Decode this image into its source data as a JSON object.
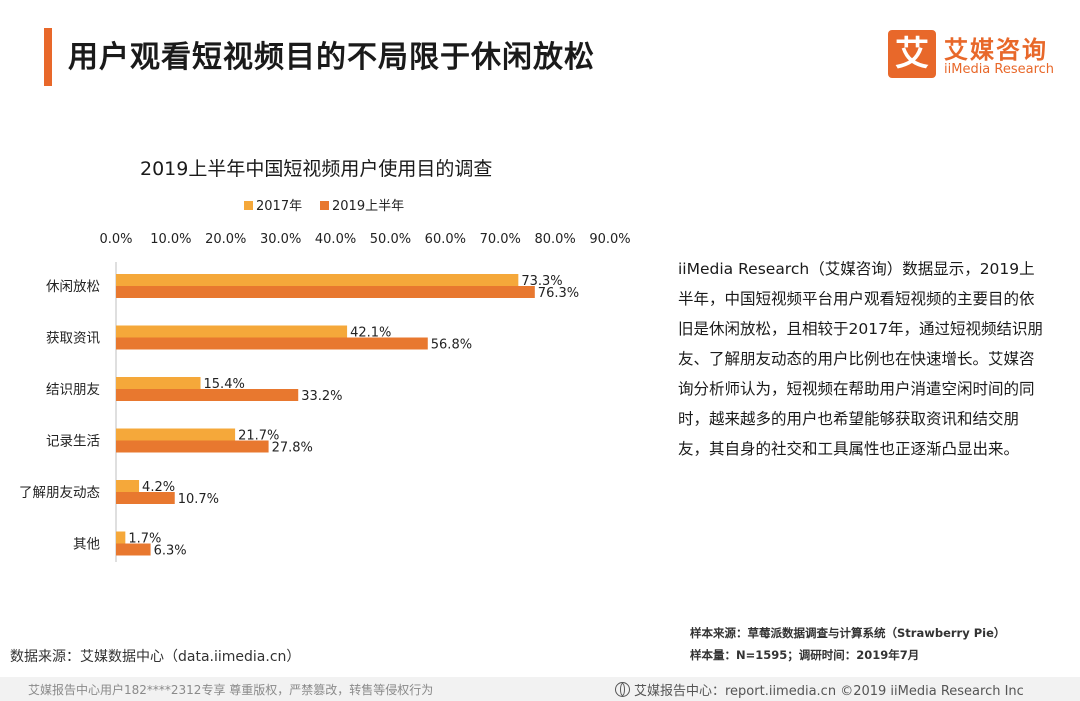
{
  "header": {
    "title": "用户观看短视频目的不局限于休闲放松",
    "logo_mark": "艾",
    "logo_cn": "艾媒咨询",
    "logo_en": "iiMedia Research"
  },
  "chart_data": {
    "type": "bar",
    "orientation": "horizontal",
    "title": "2019上半年中国短视频用户使用目的调查",
    "categories": [
      "休闲放松",
      "获取资讯",
      "结识朋友",
      "记录生活",
      "了解朋友动态",
      "其他"
    ],
    "series": [
      {
        "name": "2017年",
        "values": [
          73.3,
          42.1,
          15.4,
          21.7,
          4.2,
          1.7
        ],
        "color": "#f5a83a"
      },
      {
        "name": "2019上半年",
        "values": [
          76.3,
          56.8,
          33.2,
          27.8,
          10.7,
          6.3
        ],
        "color": "#e8782f"
      }
    ],
    "data_labels": [
      [
        "73.3%",
        "42.1%",
        "15.4%",
        "21.7%",
        "4.2%",
        "1.7%"
      ],
      [
        "76.3%",
        "56.8%",
        "33.2%",
        "27.8%",
        "10.7%",
        "6.3%"
      ]
    ],
    "xlim": [
      0,
      90
    ],
    "xticks": [
      "0.0%",
      "10.0%",
      "20.0%",
      "30.0%",
      "40.0%",
      "50.0%",
      "60.0%",
      "70.0%",
      "80.0%",
      "90.0%"
    ],
    "legend_position": "top",
    "grid": false
  },
  "description": "iiMedia Research（艾媒咨询）数据显示，2019上半年，中国短视频平台用户观看短视频的主要目的依旧是休闲放松，且相较于2017年，通过短视频结识朋友、了解朋友动态的用户比例也在快速增长。艾媒咨询分析师认为，短视频在帮助用户消遣空闲时间的同时，越来越多的用户也希望能够获取资讯和结交朋友，其自身的社交和工具属性也正逐渐凸显出来。",
  "source_right": {
    "line1": "样本来源：草莓派数据调查与计算系统（Strawberry Pie）",
    "line2": "样本量：N=1595；调研时间：2019年7月"
  },
  "source_left": "数据来源：艾媒数据中心（data.iimedia.cn）",
  "footer": {
    "left": "艾媒报告中心用户182****2312专享 尊重版权，严禁篡改，转售等侵权行为",
    "right": "艾媒报告中心：report.iimedia.cn   ©2019  iiMedia Research  Inc"
  },
  "colors": {
    "accent": "#e8682a",
    "bar_2017": "#f5a83a",
    "bar_2019": "#e8782f"
  }
}
